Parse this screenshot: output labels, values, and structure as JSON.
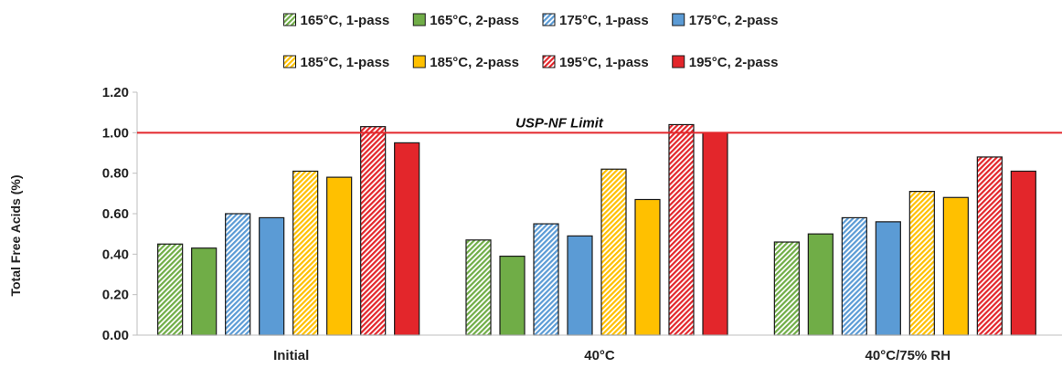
{
  "chart_data": {
    "type": "bar",
    "categories": [
      "Initial",
      "40°C",
      "40°C/75% RH"
    ],
    "series": [
      {
        "name": "165°C, 1-pass",
        "values": [
          0.45,
          0.47,
          0.46
        ],
        "color": "#70AD47",
        "pattern": "hatched"
      },
      {
        "name": "165°C, 2-pass",
        "values": [
          0.43,
          0.39,
          0.5
        ],
        "color": "#70AD47",
        "pattern": "solid"
      },
      {
        "name": "175°C, 1-pass",
        "values": [
          0.6,
          0.55,
          0.58
        ],
        "color": "#5B9BD5",
        "pattern": "hatched"
      },
      {
        "name": "175°C, 2-pass",
        "values": [
          0.58,
          0.49,
          0.56
        ],
        "color": "#5B9BD5",
        "pattern": "solid"
      },
      {
        "name": "185°C, 1-pass",
        "values": [
          0.81,
          0.82,
          0.71
        ],
        "color": "#FFC000",
        "pattern": "hatched"
      },
      {
        "name": "185°C, 2-pass",
        "values": [
          0.78,
          0.67,
          0.68
        ],
        "color": "#FFC000",
        "pattern": "solid"
      },
      {
        "name": "195°C, 1-pass",
        "values": [
          1.03,
          1.04,
          0.88
        ],
        "color": "#E3262B",
        "pattern": "hatched"
      },
      {
        "name": "195°C, 2-pass",
        "values": [
          0.95,
          1.0,
          0.81
        ],
        "color": "#E3262B",
        "pattern": "solid"
      }
    ],
    "title": "",
    "xlabel": "",
    "ylabel": "Total Free Acids (%)",
    "ylim": [
      0,
      1.2
    ],
    "yticks": [
      "0.00",
      "0.20",
      "0.40",
      "0.60",
      "0.80",
      "1.00",
      "1.20"
    ],
    "reference_line": {
      "value": 1.0,
      "label": "USP-NF Limit",
      "color": "#E3262B"
    },
    "grid": false,
    "legend_position": "top"
  }
}
